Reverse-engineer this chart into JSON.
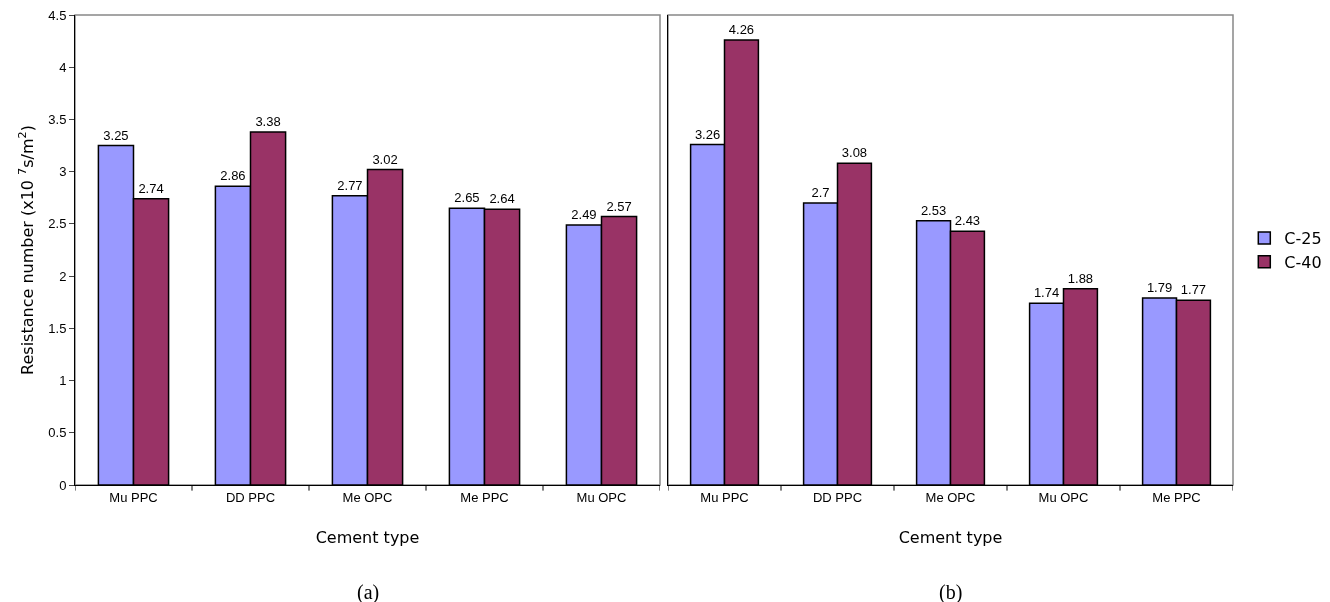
{
  "chart_data": [
    {
      "type": "bar",
      "xlabel": "Cement type",
      "ylabel": "Resistance number (x10 $^{7}$s/m$^{2}$)",
      "categories": [
        "Mu PPC",
        "DD PPC",
        "Me OPC",
        "Me PPC",
        "Mu OPC"
      ],
      "series": [
        {
          "color": "#9999ff",
          "values": [
            3.25,
            2.86,
            2.77,
            2.65,
            2.49
          ]
        },
        {
          "color": "#993366",
          "values": [
            2.74,
            3.38,
            3.02,
            2.64,
            2.57
          ]
        }
      ],
      "ylim": [
        0,
        4.5
      ],
      "yticks": [
        0,
        0.5,
        1,
        1.5,
        2,
        2.5,
        3,
        3.5,
        4,
        4.5
      ],
      "data_labels": true,
      "grid": false,
      "legend": false,
      "annotations": [
        "(a)"
      ]
    },
    {
      "type": "bar",
      "xlabel": "Cement type",
      "categories": [
        "Mu PPC",
        "DD PPC",
        "Me OPC",
        "Mu OPC",
        "Me PPC"
      ],
      "series": [
        {
          "name": "C-25",
          "color": "#9999ff",
          "values": [
            3.26,
            2.7,
            2.53,
            1.74,
            1.79
          ]
        },
        {
          "name": "C-40",
          "color": "#993366",
          "values": [
            4.26,
            3.08,
            2.43,
            1.88,
            1.77
          ]
        }
      ],
      "ylim": [
        0,
        4.5
      ],
      "tick_labels": "x",
      "data_labels": true,
      "grid": false,
      "legend": "right",
      "annotations": [
        "(b)"
      ]
    }
  ]
}
